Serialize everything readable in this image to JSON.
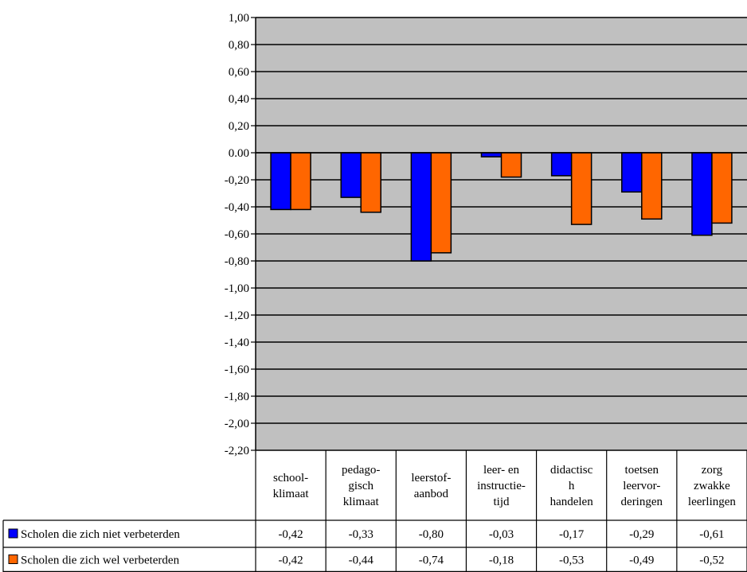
{
  "chart_data": {
    "type": "bar",
    "categories": [
      [
        "school-",
        "klimaat"
      ],
      [
        "pedago-",
        "gisch",
        "klimaat"
      ],
      [
        "leerstof-",
        "aanbod"
      ],
      [
        "leer- en",
        "instructie-",
        "tijd"
      ],
      [
        "didactisc",
        "h",
        "handelen"
      ],
      [
        "toetsen",
        "leervor-",
        "deringen"
      ],
      [
        "zorg",
        "zwakke",
        "leerlingen"
      ]
    ],
    "series": [
      {
        "name": "Scholen die zich niet verbeterden",
        "color": "#0000ff",
        "values": [
          -0.42,
          -0.33,
          -0.8,
          -0.03,
          -0.17,
          -0.29,
          -0.61
        ],
        "labels": [
          "-0,42",
          "-0,33",
          "-0,80",
          "-0,03",
          "-0,17",
          "-0,29",
          "-0,61"
        ]
      },
      {
        "name": "Scholen die zich wel verbeterden",
        "color": "#ff6600",
        "values": [
          -0.42,
          -0.44,
          -0.74,
          -0.18,
          -0.53,
          -0.49,
          -0.52
        ],
        "labels": [
          "-0,42",
          "-0,44",
          "-0,74",
          "-0,18",
          "-0,53",
          "-0,49",
          "-0,52"
        ]
      }
    ],
    "ylim": [
      -2.2,
      1.0
    ],
    "yticks": [
      1.0,
      0.8,
      0.6,
      0.4,
      0.2,
      0.0,
      -0.2,
      -0.4,
      -0.6,
      -0.8,
      -1.0,
      -1.2,
      -1.4,
      -1.6,
      -1.8,
      -2.0,
      -2.2
    ],
    "ytick_labels": [
      "1,00",
      "0,80",
      "0,60",
      "0,40",
      "0,20",
      "0.00",
      "-0,20",
      "-0,40",
      "-0,60",
      "-0,80",
      "-1,00",
      "-1,20",
      "-1,40",
      "-1,60",
      "-1,80",
      "-2,00",
      "-2,20"
    ],
    "grid": true,
    "plot_background": "#c0c0c0",
    "legend_placement": "bottom (data table)"
  }
}
